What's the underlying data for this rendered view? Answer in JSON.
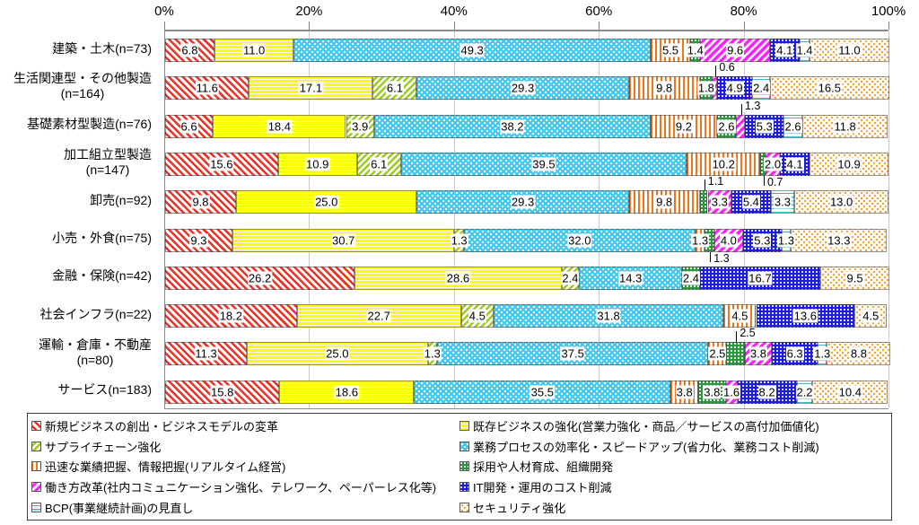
{
  "chart_data": {
    "type": "bar",
    "stacked": true,
    "percent_stacked": true,
    "orientation": "horizontal",
    "grid": true,
    "legend_position": "bottom",
    "x_axis": {
      "position": "top",
      "min": 0,
      "max": 100,
      "tick_values": [
        0,
        20,
        40,
        60,
        80,
        100
      ],
      "tick_labels": [
        "0%",
        "20%",
        "40%",
        "60%",
        "80%",
        "100%"
      ]
    },
    "categories": [
      {
        "line1": "建築・土木(n=73)",
        "line2": ""
      },
      {
        "line1": "生活関連型・その他製造",
        "line2": "(n=164)"
      },
      {
        "line1": "基礎素材型製造(n=76)",
        "line2": ""
      },
      {
        "line1": "加工組立型製造",
        "line2": "(n=147)"
      },
      {
        "line1": "卸売(n=92)",
        "line2": ""
      },
      {
        "line1": "小売・外食(n=75)",
        "line2": ""
      },
      {
        "line1": "金融・保険(n=42)",
        "line2": ""
      },
      {
        "line1": "社会インフラ(n=22)",
        "line2": ""
      },
      {
        "line1": "運輸・倉庫・不動産",
        "line2": "(n=80)"
      },
      {
        "line1": "サービス(n=183)",
        "line2": ""
      }
    ],
    "series": [
      {
        "name": "新規ビジネスの創出・ビジネスモデルの変革",
        "pattern": "red-diagonal-hatch",
        "color": "#ee3124",
        "values": [
          6.8,
          11.6,
          6.6,
          15.6,
          9.8,
          9.3,
          26.2,
          18.2,
          11.3,
          15.8
        ]
      },
      {
        "name": "既存ビジネスの強化(営業力強化・商品／サービスの高付加価値化)",
        "pattern": "yellow-horizontal-lines",
        "color": "#ffff00",
        "values": [
          11.0,
          17.1,
          18.4,
          10.9,
          25.0,
          30.7,
          28.6,
          22.7,
          25.0,
          18.6
        ]
      },
      {
        "name": "サプライチェーン強化",
        "pattern": "yellowgreen-diagonal-hatch",
        "color": "#9ccb1f",
        "values": [
          0,
          6.1,
          3.9,
          6.1,
          0,
          1.3,
          2.4,
          4.5,
          1.3,
          0
        ]
      },
      {
        "name": "業務プロセスの効率化・スピードアップ(省力化、業務コスト削減)",
        "pattern": "cyan-white-dots",
        "color": "#3fc8f4",
        "values": [
          49.3,
          29.3,
          38.2,
          39.5,
          29.3,
          32.0,
          14.3,
          31.8,
          37.5,
          35.5
        ]
      },
      {
        "name": "迅速な業績把握、情報把握(リアルタイム経営)",
        "pattern": "orange-vertical-lines",
        "color": "#f0751f",
        "values": [
          5.5,
          9.8,
          9.2,
          10.2,
          9.8,
          1.3,
          0,
          4.5,
          2.5,
          3.8
        ]
      },
      {
        "name": "採用や人材育成、組織開発",
        "pattern": "green-white-dots",
        "color": "#2f9342",
        "values": [
          1.4,
          1.8,
          2.6,
          0.7,
          1.1,
          1.3,
          2.4,
          0,
          2.5,
          3.8
        ]
      },
      {
        "name": "働き方改革(社内コミュニケーション強化、テレワーク、ペーパーレス化等)",
        "pattern": "magenta-diagonal-hatch",
        "color": "#ff22ff",
        "values": [
          9.6,
          0.6,
          1.3,
          2.0,
          3.3,
          4.0,
          0,
          0,
          3.8,
          1.6
        ]
      },
      {
        "name": "IT開発・運用のコスト削減",
        "pattern": "blue-white-dots",
        "color": "#1b1be4",
        "values": [
          4.1,
          4.9,
          5.3,
          4.1,
          5.4,
          5.3,
          16.7,
          13.6,
          6.3,
          8.2
        ]
      },
      {
        "name": "BCP(事業継続計画)の見直し",
        "pattern": "teal-horizontal-lines",
        "color": "#2fbfca",
        "values": [
          1.4,
          2.4,
          2.6,
          0,
          3.3,
          1.3,
          0,
          0,
          1.3,
          2.2
        ]
      },
      {
        "name": "セキュリティ強化",
        "pattern": "tan-orange-dots",
        "color": "#f5a33c",
        "values": [
          11.0,
          16.5,
          11.8,
          10.9,
          13.0,
          13.3,
          9.5,
          4.5,
          8.8,
          10.4
        ]
      }
    ],
    "callouts": [
      {
        "row": 1,
        "series": 6,
        "position": "above",
        "label": "0.6"
      },
      {
        "row": 2,
        "series": 6,
        "position": "above",
        "label": "1.3"
      },
      {
        "row": 3,
        "series": 5,
        "position": "below",
        "label": "0.7"
      },
      {
        "row": 4,
        "series": 5,
        "position": "above",
        "label": "1.1"
      },
      {
        "row": 5,
        "series": 5,
        "position": "below",
        "label": "1.3"
      },
      {
        "row": 8,
        "series": 5,
        "position": "above",
        "label": "2.5"
      }
    ],
    "legend_order": [
      0,
      2,
      4,
      6,
      8,
      1,
      3,
      5,
      7,
      9
    ]
  }
}
